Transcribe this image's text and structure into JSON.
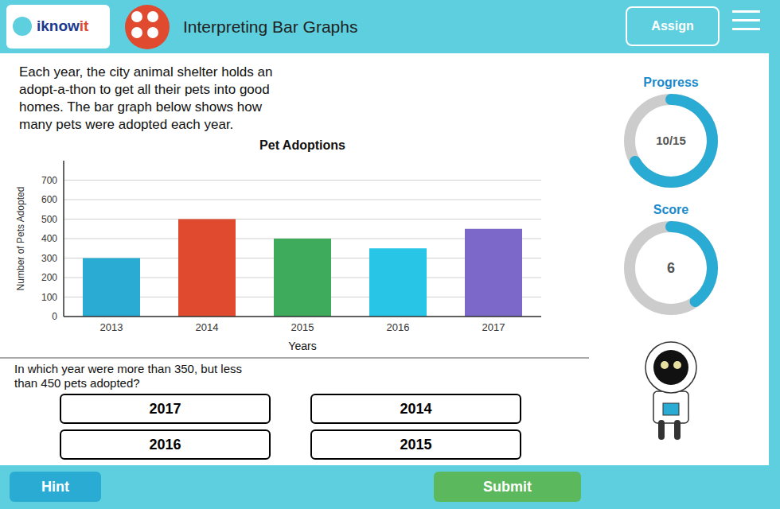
{
  "page": {
    "brand": [
      "iknow",
      "it"
    ],
    "brand_colors": [
      "#1a3a8f",
      "#E04A2F"
    ],
    "header_text": "Interpreting Bar Graphs",
    "assign_label": "Assign",
    "body_text": "Each year, the city animal shelter holds an\nadopt-a-thon to get all their pets into good\nhomes. The bar graph below shows how\nmany pets were adopted each year.",
    "question_text": "In which year were more than 350, but less\nthan 450 pets adopted?",
    "answer_options": [
      "2016",
      "2015",
      "2017",
      "2014"
    ],
    "hint_label": "Hint",
    "submit_label": "Submit",
    "progress_label": "Progress",
    "progress_text": "10/15",
    "progress": {
      "value": 10,
      "total": 15
    },
    "score_label": "Score",
    "score_text": "6",
    "score": {
      "value": 6,
      "total": 15
    }
  },
  "chart_data": {
    "type": "bar",
    "title": "Pet Adoptions",
    "xlabel": "Years",
    "ylabel": "Number of Pets Adopted",
    "categories": [
      "2013",
      "2014",
      "2015",
      "2016",
      "2017"
    ],
    "values": [
      300,
      500,
      400,
      350,
      450
    ],
    "colors": [
      "#29ABD4",
      "#E04A2F",
      "#3DAA5C",
      "#29C5E6",
      "#7B68C8"
    ],
    "ylim": [
      0,
      800
    ],
    "yticks": [
      0,
      100,
      200,
      300,
      400,
      500,
      600,
      700
    ],
    "grid": true
  }
}
